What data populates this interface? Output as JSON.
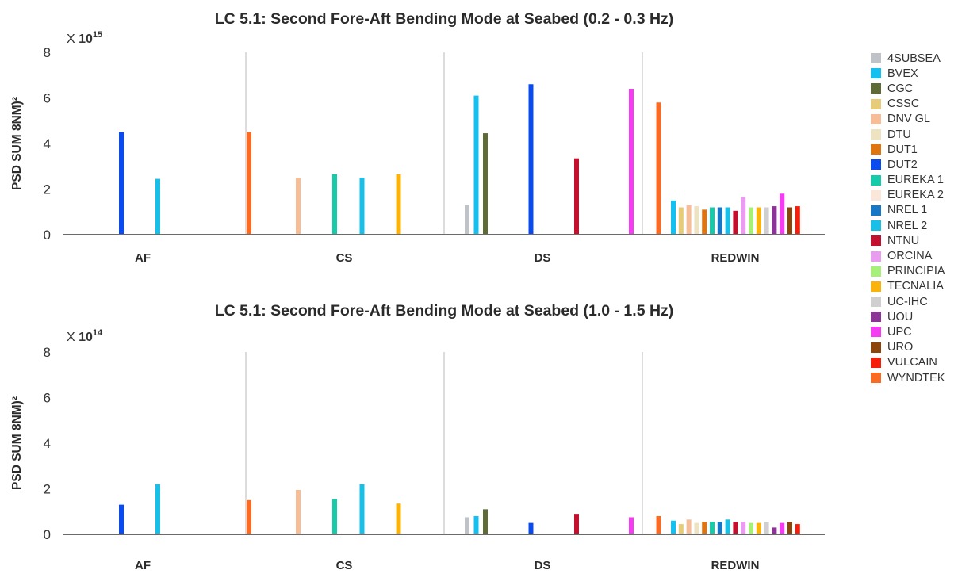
{
  "chart_data": [
    {
      "type": "bar",
      "title": "LC 5.1: Second Fore-Aft Bending Mode at Seabed (0.2 - 0.3 Hz)",
      "scale_prefix": "X",
      "scale_base": "10",
      "scale_exp": "15",
      "ylabel": "PSD SUM 8NM)²",
      "ylim": [
        0,
        8
      ],
      "yticks": [
        "0",
        "2",
        "4",
        "6",
        "8"
      ],
      "groups": [
        "AF",
        "CS",
        "DS",
        "REDWIN"
      ],
      "grid": "vertical group separators",
      "bars": {
        "AF": [
          {
            "s": "DUT2",
            "v": 4.5
          },
          {
            "s": "NREL 2",
            "v": 2.45
          },
          {
            "s": "WYNDTEK",
            "v": 4.5
          }
        ],
        "CS": [
          {
            "s": "DNV GL",
            "v": 2.5
          },
          {
            "s": "EUREKA 1",
            "v": 2.65
          },
          {
            "s": "NREL 2",
            "v": 2.5
          },
          {
            "s": "TECNALIA",
            "v": 2.65
          }
        ],
        "DS": [
          {
            "s": "4SUBSEA",
            "v": 1.3
          },
          {
            "s": "BVEX",
            "v": 6.1
          },
          {
            "s": "CGC",
            "v": 4.45
          },
          {
            "s": "DUT2",
            "v": 6.6
          },
          {
            "s": "NTNU",
            "v": 3.35
          },
          {
            "s": "UPC",
            "v": 6.4
          },
          {
            "s": "WYNDTEK",
            "v": 5.8
          }
        ],
        "REDWIN": [
          {
            "s": "BVEX",
            "v": 1.5
          },
          {
            "s": "CSSC",
            "v": 1.2
          },
          {
            "s": "DNV GL",
            "v": 1.3
          },
          {
            "s": "DTU",
            "v": 1.25
          },
          {
            "s": "DUT1",
            "v": 1.1
          },
          {
            "s": "EUREKA 1",
            "v": 1.2
          },
          {
            "s": "NREL 1",
            "v": 1.2
          },
          {
            "s": "NREL 2",
            "v": 1.2
          },
          {
            "s": "NTNU",
            "v": 1.05
          },
          {
            "s": "ORCINA",
            "v": 1.65
          },
          {
            "s": "PRINCIPIA",
            "v": 1.2
          },
          {
            "s": "TECNALIA",
            "v": 1.2
          },
          {
            "s": "UC-IHC",
            "v": 1.2
          },
          {
            "s": "UOU",
            "v": 1.25
          },
          {
            "s": "UPC",
            "v": 1.8
          },
          {
            "s": "URO",
            "v": 1.2
          },
          {
            "s": "VULCAIN",
            "v": 1.25
          }
        ]
      }
    },
    {
      "type": "bar",
      "title": "LC 5.1: Second Fore-Aft Bending Mode at Seabed (1.0 - 1.5 Hz)",
      "scale_prefix": "X",
      "scale_base": "10",
      "scale_exp": "14",
      "ylabel": "PSD SUM 8NM)²",
      "ylim": [
        0,
        8
      ],
      "yticks": [
        "0",
        "2",
        "4",
        "6",
        "8"
      ],
      "groups": [
        "AF",
        "CS",
        "DS",
        "REDWIN"
      ],
      "grid": "vertical group separators",
      "bars": {
        "AF": [
          {
            "s": "DUT2",
            "v": 1.3
          },
          {
            "s": "NREL 2",
            "v": 2.2
          },
          {
            "s": "WYNDTEK",
            "v": 1.5
          }
        ],
        "CS": [
          {
            "s": "DNV GL",
            "v": 1.95
          },
          {
            "s": "EUREKA 1",
            "v": 1.55
          },
          {
            "s": "NREL 2",
            "v": 2.2
          },
          {
            "s": "TECNALIA",
            "v": 1.35
          }
        ],
        "DS": [
          {
            "s": "4SUBSEA",
            "v": 0.75
          },
          {
            "s": "BVEX",
            "v": 0.8
          },
          {
            "s": "CGC",
            "v": 1.1
          },
          {
            "s": "DUT2",
            "v": 0.5
          },
          {
            "s": "NTNU",
            "v": 0.9
          },
          {
            "s": "UPC",
            "v": 0.75
          },
          {
            "s": "WYNDTEK",
            "v": 0.8
          }
        ],
        "REDWIN": [
          {
            "s": "BVEX",
            "v": 0.6
          },
          {
            "s": "CSSC",
            "v": 0.45
          },
          {
            "s": "DNV GL",
            "v": 0.65
          },
          {
            "s": "DTU",
            "v": 0.5
          },
          {
            "s": "DUT1",
            "v": 0.55
          },
          {
            "s": "EUREKA 1",
            "v": 0.55
          },
          {
            "s": "NREL 1",
            "v": 0.55
          },
          {
            "s": "NREL 2",
            "v": 0.65
          },
          {
            "s": "NTNU",
            "v": 0.55
          },
          {
            "s": "ORCINA",
            "v": 0.55
          },
          {
            "s": "PRINCIPIA",
            "v": 0.5
          },
          {
            "s": "TECNALIA",
            "v": 0.5
          },
          {
            "s": "UC-IHC",
            "v": 0.55
          },
          {
            "s": "UOU",
            "v": 0.3
          },
          {
            "s": "UPC",
            "v": 0.5
          },
          {
            "s": "URO",
            "v": 0.55
          },
          {
            "s": "VULCAIN",
            "v": 0.45
          }
        ]
      }
    }
  ],
  "legend": [
    {
      "name": "4SUBSEA",
      "color": "#bfc3c8"
    },
    {
      "name": "BVEX",
      "color": "#13c0ef"
    },
    {
      "name": "CGC",
      "color": "#5e6b35"
    },
    {
      "name": "CSSC",
      "color": "#e6cb78"
    },
    {
      "name": "DNV GL",
      "color": "#f7bd97"
    },
    {
      "name": "DTU",
      "color": "#eee3c1"
    },
    {
      "name": "DUT1",
      "color": "#e07510"
    },
    {
      "name": "DUT2",
      "color": "#0a4bf0"
    },
    {
      "name": "EUREKA 1",
      "color": "#14ccaa"
    },
    {
      "name": "EUREKA 2",
      "color": "#fbe7d9"
    },
    {
      "name": "NREL 1",
      "color": "#1677c7"
    },
    {
      "name": "NREL 2",
      "color": "#18bfe6"
    },
    {
      "name": "NTNU",
      "color": "#c4102f"
    },
    {
      "name": "ORCINA",
      "color": "#e99cf0"
    },
    {
      "name": "PRINCIPIA",
      "color": "#a6f07a"
    },
    {
      "name": "TECNALIA",
      "color": "#fbb30b"
    },
    {
      "name": "UC-IHC",
      "color": "#cfcfcf"
    },
    {
      "name": "UOU",
      "color": "#8c3398"
    },
    {
      "name": "UPC",
      "color": "#f53cf2"
    },
    {
      "name": "URO",
      "color": "#8c4408"
    },
    {
      "name": "VULCAIN",
      "color": "#f51e0a"
    },
    {
      "name": "WYNDTEK",
      "color": "#fb6a23"
    }
  ]
}
